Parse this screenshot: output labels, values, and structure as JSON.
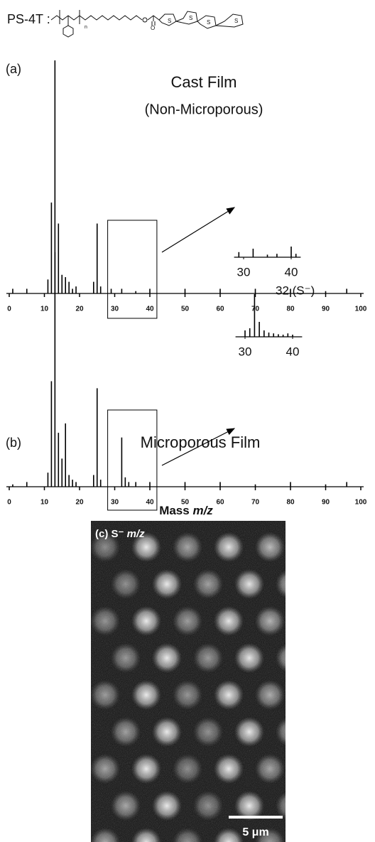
{
  "structure_label": "PS-4T :",
  "chart_data": [
    {
      "type": "bar",
      "panel_label": "(a)",
      "title": "Cast Film",
      "subtitle": "(Non-Microporous)",
      "x": [
        1,
        5,
        11,
        12,
        13,
        14,
        15,
        16,
        17,
        18,
        19,
        24,
        25,
        26,
        29,
        32,
        36,
        40,
        50,
        60,
        70,
        80,
        90,
        96
      ],
      "values": [
        2,
        2,
        6,
        39,
        100,
        30,
        8,
        7,
        5,
        2,
        3,
        5,
        30,
        3,
        2,
        2,
        1,
        2,
        2,
        2,
        2,
        2,
        1,
        2
      ],
      "xlim": [
        0,
        100
      ],
      "xticks": [
        0,
        10,
        20,
        30,
        40,
        50,
        60,
        70,
        80,
        90,
        100
      ],
      "ylim": [
        0,
        100
      ],
      "color": "#000000",
      "inset": {
        "x": [
          29,
          32,
          35,
          37,
          40,
          41
        ],
        "values": [
          12,
          20,
          6,
          8,
          25,
          8
        ],
        "xlim": [
          28,
          42
        ],
        "xticks": [
          30,
          40
        ],
        "ylim": [
          0,
          100
        ]
      }
    },
    {
      "type": "bar",
      "panel_label": "(b)",
      "title": "Microporous Film",
      "annotation": "32 (S⁻)",
      "x": [
        1,
        5,
        11,
        12,
        13,
        14,
        15,
        16,
        17,
        18,
        19,
        24,
        25,
        26,
        32,
        33,
        34,
        36,
        40,
        50,
        60,
        70,
        80,
        90,
        96
      ],
      "values": [
        1,
        2,
        6,
        45,
        100,
        23,
        12,
        27,
        5,
        3,
        2,
        5,
        42,
        3,
        21,
        4,
        2,
        2,
        2,
        2,
        2,
        1,
        2,
        1,
        2
      ],
      "xlim": [
        0,
        100
      ],
      "xticks": [
        0,
        10,
        20,
        30,
        40,
        50,
        60,
        70,
        80,
        90,
        100
      ],
      "ylim": [
        0,
        100
      ],
      "color": "#000000",
      "inset": {
        "x": [
          30,
          31,
          32,
          33,
          34,
          35,
          36,
          37,
          38,
          39,
          40
        ],
        "values": [
          15,
          20,
          100,
          35,
          15,
          10,
          8,
          6,
          5,
          8,
          5
        ],
        "xlim": [
          28,
          42
        ],
        "xticks": [
          30,
          40
        ],
        "ylim": [
          0,
          100
        ]
      }
    }
  ],
  "x_label": "Mass",
  "x_label_unit": "m/z",
  "image": {
    "label": "(c) S⁻",
    "label_unit": "m/z",
    "scale_bar": "5 μm"
  }
}
